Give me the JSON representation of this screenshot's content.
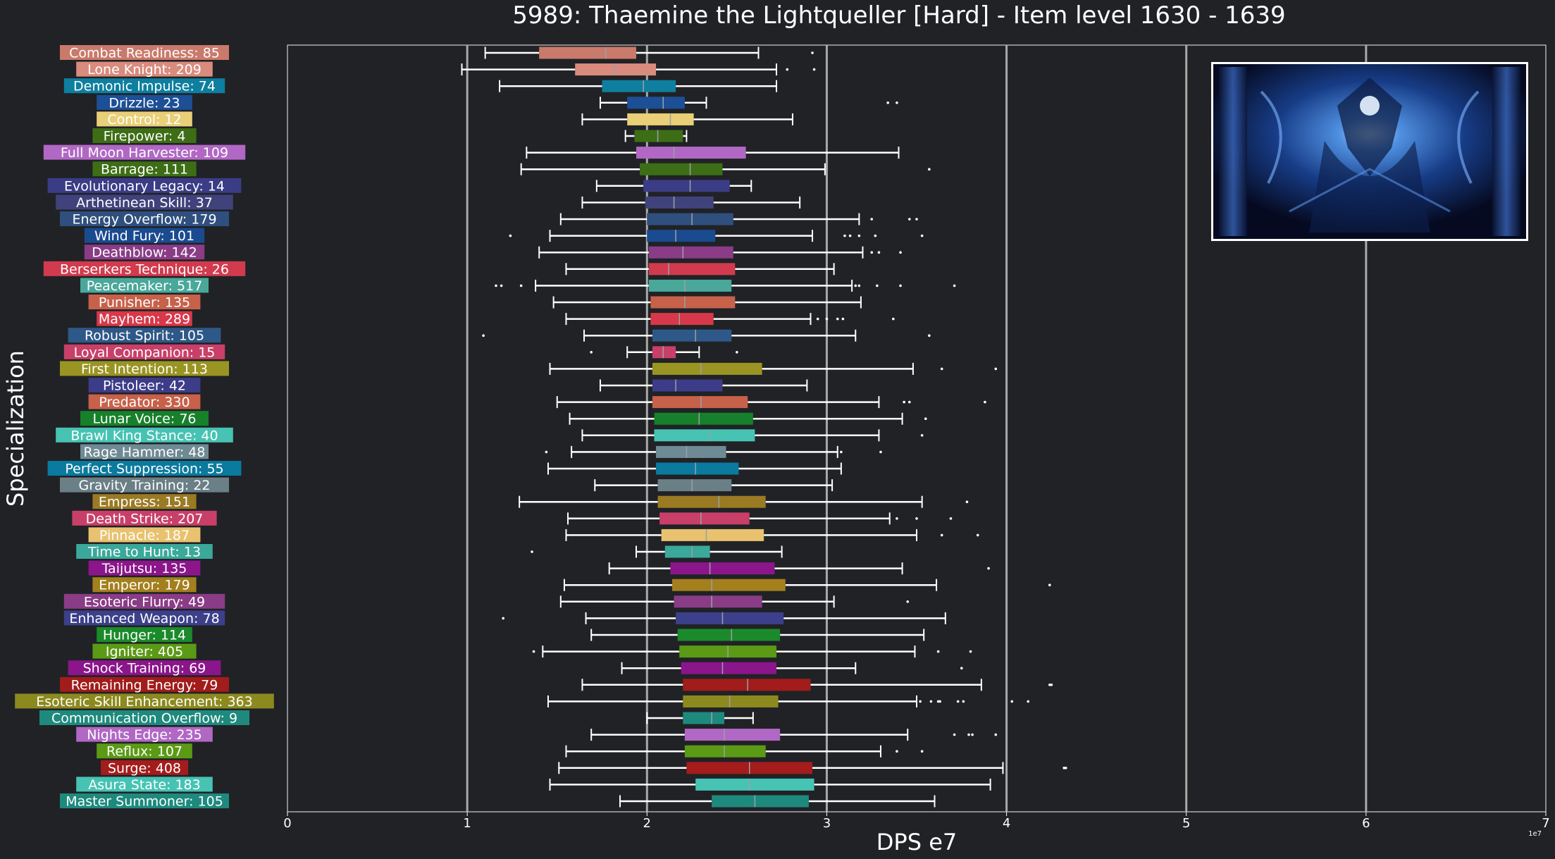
{
  "chart_data": {
    "type": "boxplot",
    "title": "5989: Thaemine the Lightqueller [Hard] - Item level 1630 - 1639",
    "xlabel": "DPS e7",
    "ylabel": "Specialization",
    "x_exponent_label": "1e7",
    "xlim": [
      0,
      7
    ],
    "x_ticks": [
      "0",
      "1",
      "2",
      "3",
      "4",
      "5",
      "6",
      "7"
    ],
    "grid": "vertical",
    "unit_scale": 10000000,
    "categories": [
      {
        "label": "Combat Readiness: 85",
        "color": "#c97a6a",
        "whisker_low": 1.1,
        "q1": 1.4,
        "median": 1.77,
        "q3": 1.94,
        "whisker_high": 2.62,
        "outliers": [
          2.92
        ]
      },
      {
        "label": "Lone Knight: 209",
        "color": "#d98c7e",
        "whisker_low": 0.97,
        "q1": 1.6,
        "median": 1.82,
        "q3": 2.05,
        "whisker_high": 2.72,
        "outliers": [
          2.78,
          2.93
        ]
      },
      {
        "label": "Demonic Impulse: 74",
        "color": "#0f7fa0",
        "whisker_low": 1.18,
        "q1": 1.75,
        "median": 1.98,
        "q3": 2.16,
        "whisker_high": 2.72,
        "outliers": []
      },
      {
        "label": "Drizzle: 23",
        "color": "#1d4f96",
        "whisker_low": 1.74,
        "q1": 1.89,
        "median": 2.09,
        "q3": 2.21,
        "whisker_high": 2.33,
        "outliers": [
          3.34,
          3.39
        ]
      },
      {
        "label": "Control: 12",
        "color": "#e8cf78",
        "whisker_low": 1.64,
        "q1": 1.89,
        "median": 2.13,
        "q3": 2.26,
        "whisker_high": 2.81,
        "outliers": []
      },
      {
        "label": "Firepower: 4",
        "color": "#3d6e16",
        "whisker_low": 1.88,
        "q1": 1.93,
        "median": 2.06,
        "q3": 2.2,
        "whisker_high": 2.22,
        "outliers": []
      },
      {
        "label": "Full Moon Harvester: 109",
        "color": "#b168c5",
        "whisker_low": 1.33,
        "q1": 1.94,
        "median": 2.15,
        "q3": 2.55,
        "whisker_high": 3.4,
        "outliers": []
      },
      {
        "label": "Barrage: 111",
        "color": "#3d6e16",
        "whisker_low": 1.3,
        "q1": 1.96,
        "median": 2.24,
        "q3": 2.42,
        "whisker_high": 2.99,
        "outliers": [
          3.57
        ]
      },
      {
        "label": "Evolutionary Legacy: 14",
        "color": "#3a3c86",
        "whisker_low": 1.72,
        "q1": 1.98,
        "median": 2.24,
        "q3": 2.46,
        "whisker_high": 2.58,
        "outliers": []
      },
      {
        "label": "Arthetinean Skill: 37",
        "color": "#40427c",
        "whisker_low": 1.64,
        "q1": 1.99,
        "median": 2.15,
        "q3": 2.37,
        "whisker_high": 2.85,
        "outliers": []
      },
      {
        "label": "Energy Overflow: 179",
        "color": "#2f4f7e",
        "whisker_low": 1.52,
        "q1": 2.0,
        "median": 2.25,
        "q3": 2.48,
        "whisker_high": 3.18,
        "outliers": [
          3.25,
          3.46,
          3.5
        ]
      },
      {
        "label": "Wind Fury: 101",
        "color": "#1a4a8f",
        "whisker_low": 1.46,
        "q1": 2.0,
        "median": 2.16,
        "q3": 2.38,
        "whisker_high": 2.92,
        "outliers": [
          1.24,
          3.1,
          3.13,
          3.18,
          3.27,
          3.53
        ]
      },
      {
        "label": "Deathblow: 142",
        "color": "#8a3c86",
        "whisker_low": 1.4,
        "q1": 2.01,
        "median": 2.2,
        "q3": 2.48,
        "whisker_high": 3.2,
        "outliers": [
          3.25,
          3.29,
          3.41
        ]
      },
      {
        "label": "Berserkers Technique: 26",
        "color": "#d23b4e",
        "whisker_low": 1.55,
        "q1": 2.01,
        "median": 2.12,
        "q3": 2.49,
        "whisker_high": 3.04,
        "outliers": []
      },
      {
        "label": "Peacemaker: 517",
        "color": "#4aa89a",
        "whisker_low": 1.38,
        "q1": 2.01,
        "median": 2.21,
        "q3": 2.47,
        "whisker_high": 3.14,
        "outliers": [
          1.16,
          1.19,
          1.3,
          3.16,
          3.18,
          3.28,
          3.41,
          3.71
        ]
      },
      {
        "label": "Punisher: 135",
        "color": "#c7614a",
        "whisker_low": 1.48,
        "q1": 2.02,
        "median": 2.21,
        "q3": 2.49,
        "whisker_high": 3.19,
        "outliers": []
      },
      {
        "label": "Mayhem: 289",
        "color": "#d8394a",
        "whisker_low": 1.55,
        "q1": 2.02,
        "median": 2.18,
        "q3": 2.37,
        "whisker_high": 2.91,
        "outliers": [
          2.95,
          3.0,
          3.06,
          3.09,
          3.37
        ]
      },
      {
        "label": "Robust Spirit: 105",
        "color": "#2e5887",
        "whisker_low": 1.65,
        "q1": 2.03,
        "median": 2.27,
        "q3": 2.47,
        "whisker_high": 3.16,
        "outliers": [
          1.09,
          3.57
        ]
      },
      {
        "label": "Loyal Companion: 15",
        "color": "#c8406a",
        "whisker_low": 1.89,
        "q1": 2.03,
        "median": 2.09,
        "q3": 2.16,
        "whisker_high": 2.29,
        "outliers": [
          1.69,
          2.5
        ]
      },
      {
        "label": "First Intention: 113",
        "color": "#9a9422",
        "whisker_low": 1.46,
        "q1": 2.03,
        "median": 2.3,
        "q3": 2.64,
        "whisker_high": 3.48,
        "outliers": [
          3.64,
          3.94
        ]
      },
      {
        "label": "Pistoleer: 42",
        "color": "#3c3c88",
        "whisker_low": 1.74,
        "q1": 2.03,
        "median": 2.16,
        "q3": 2.42,
        "whisker_high": 2.89,
        "outliers": []
      },
      {
        "label": "Predator: 330",
        "color": "#c7614a",
        "whisker_low": 1.5,
        "q1": 2.03,
        "median": 2.3,
        "q3": 2.56,
        "whisker_high": 3.29,
        "outliers": [
          3.43,
          3.46,
          3.88
        ]
      },
      {
        "label": "Lunar Voice: 76",
        "color": "#16812a",
        "whisker_low": 1.57,
        "q1": 2.04,
        "median": 2.29,
        "q3": 2.59,
        "whisker_high": 3.42,
        "outliers": [
          3.55
        ]
      },
      {
        "label": "Brawl King Stance: 40",
        "color": "#47c3b4",
        "whisker_low": 1.64,
        "q1": 2.04,
        "median": 2.35,
        "q3": 2.6,
        "whisker_high": 3.29,
        "outliers": [
          3.53
        ]
      },
      {
        "label": "Rage Hammer: 48",
        "color": "#6e8a94",
        "whisker_low": 1.58,
        "q1": 2.05,
        "median": 2.22,
        "q3": 2.44,
        "whisker_high": 3.06,
        "outliers": [
          1.44,
          3.08,
          3.3
        ]
      },
      {
        "label": "Perfect Suppression: 55",
        "color": "#0a7a9e",
        "whisker_low": 1.45,
        "q1": 2.05,
        "median": 2.27,
        "q3": 2.51,
        "whisker_high": 3.08,
        "outliers": []
      },
      {
        "label": "Gravity Training: 22",
        "color": "#6a7f86",
        "whisker_low": 1.71,
        "q1": 2.06,
        "median": 2.25,
        "q3": 2.47,
        "whisker_high": 3.03,
        "outliers": []
      },
      {
        "label": "Empress: 151",
        "color": "#9a7a22",
        "whisker_low": 1.29,
        "q1": 2.06,
        "median": 2.4,
        "q3": 2.66,
        "whisker_high": 3.53,
        "outliers": [
          3.78
        ]
      },
      {
        "label": "Death Strike: 207",
        "color": "#c8406a",
        "whisker_low": 1.56,
        "q1": 2.07,
        "median": 2.3,
        "q3": 2.57,
        "whisker_high": 3.35,
        "outliers": [
          3.39,
          3.5,
          3.69
        ]
      },
      {
        "label": "Pinnacle: 187",
        "color": "#e8c26e",
        "whisker_low": 1.55,
        "q1": 2.08,
        "median": 2.33,
        "q3": 2.65,
        "whisker_high": 3.5,
        "outliers": [
          3.64,
          3.84
        ]
      },
      {
        "label": "Time to Hunt: 13",
        "color": "#3aa89a",
        "whisker_low": 1.94,
        "q1": 2.1,
        "median": 2.25,
        "q3": 2.35,
        "whisker_high": 2.75,
        "outliers": [
          1.36
        ]
      },
      {
        "label": "Taijutsu: 135",
        "color": "#8b158b",
        "whisker_low": 1.79,
        "q1": 2.13,
        "median": 2.35,
        "q3": 2.71,
        "whisker_high": 3.42,
        "outliers": [
          3.9
        ]
      },
      {
        "label": "Emperor: 179",
        "color": "#a47f1d",
        "whisker_low": 1.54,
        "q1": 2.14,
        "median": 2.36,
        "q3": 2.77,
        "whisker_high": 3.61,
        "outliers": [
          4.24
        ]
      },
      {
        "label": "Esoteric Flurry: 49",
        "color": "#8a3c86",
        "whisker_low": 1.52,
        "q1": 2.15,
        "median": 2.36,
        "q3": 2.64,
        "whisker_high": 3.04,
        "outliers": [
          3.45
        ]
      },
      {
        "label": "Enhanced Weapon: 78",
        "color": "#3c3f8a",
        "whisker_low": 1.66,
        "q1": 2.16,
        "median": 2.42,
        "q3": 2.76,
        "whisker_high": 3.66,
        "outliers": [
          1.2
        ]
      },
      {
        "label": "Hunger: 114",
        "color": "#1a8a2a",
        "whisker_low": 1.69,
        "q1": 2.17,
        "median": 2.47,
        "q3": 2.74,
        "whisker_high": 3.54,
        "outliers": []
      },
      {
        "label": "Igniter: 405",
        "color": "#5b9a15",
        "whisker_low": 1.42,
        "q1": 2.18,
        "median": 2.45,
        "q3": 2.72,
        "whisker_high": 3.49,
        "outliers": [
          1.37,
          3.62,
          3.8
        ]
      },
      {
        "label": "Shock Training: 69",
        "color": "#8b158b",
        "whisker_low": 1.86,
        "q1": 2.19,
        "median": 2.42,
        "q3": 2.72,
        "whisker_high": 3.16,
        "outliers": [
          3.75
        ]
      },
      {
        "label": "Remaining Energy: 79",
        "color": "#a21c1c",
        "whisker_low": 1.64,
        "q1": 2.2,
        "median": 2.56,
        "q3": 2.91,
        "whisker_high": 3.86,
        "outliers": [
          4.24,
          4.25
        ]
      },
      {
        "label": "Esoteric Skill Enhancement: 363",
        "color": "#8c8a1e",
        "whisker_low": 1.45,
        "q1": 2.2,
        "median": 2.46,
        "q3": 2.73,
        "whisker_high": 3.5,
        "outliers": [
          3.52,
          3.58,
          3.62,
          3.63,
          3.73,
          3.76,
          4.03,
          4.12
        ]
      },
      {
        "label": "Communication Overflow: 9",
        "color": "#1e8a7e",
        "whisker_low": 2.0,
        "q1": 2.2,
        "median": 2.36,
        "q3": 2.43,
        "whisker_high": 2.59,
        "outliers": []
      },
      {
        "label": "Nights Edge: 235",
        "color": "#b168c5",
        "whisker_low": 1.69,
        "q1": 2.21,
        "median": 2.43,
        "q3": 2.74,
        "whisker_high": 3.45,
        "outliers": [
          3.71,
          3.79,
          3.81,
          3.94
        ]
      },
      {
        "label": "Reflux: 107",
        "color": "#5b9a15",
        "whisker_low": 1.55,
        "q1": 2.21,
        "median": 2.43,
        "q3": 2.66,
        "whisker_high": 3.3,
        "outliers": [
          3.39,
          3.53
        ]
      },
      {
        "label": "Surge: 408",
        "color": "#a51c1c",
        "whisker_low": 1.51,
        "q1": 2.22,
        "median": 2.57,
        "q3": 2.92,
        "whisker_high": 3.98,
        "outliers": [
          4.32,
          4.33
        ]
      },
      {
        "label": "Asura State: 183",
        "color": "#47c3b4",
        "whisker_low": 1.46,
        "q1": 2.27,
        "median": 2.57,
        "q3": 2.93,
        "whisker_high": 3.91,
        "outliers": []
      },
      {
        "label": "Master Summoner: 105",
        "color": "#1e8a7e",
        "whisker_low": 1.85,
        "q1": 2.36,
        "median": 2.6,
        "q3": 2.9,
        "whisker_high": 3.6,
        "outliers": []
      }
    ]
  }
}
